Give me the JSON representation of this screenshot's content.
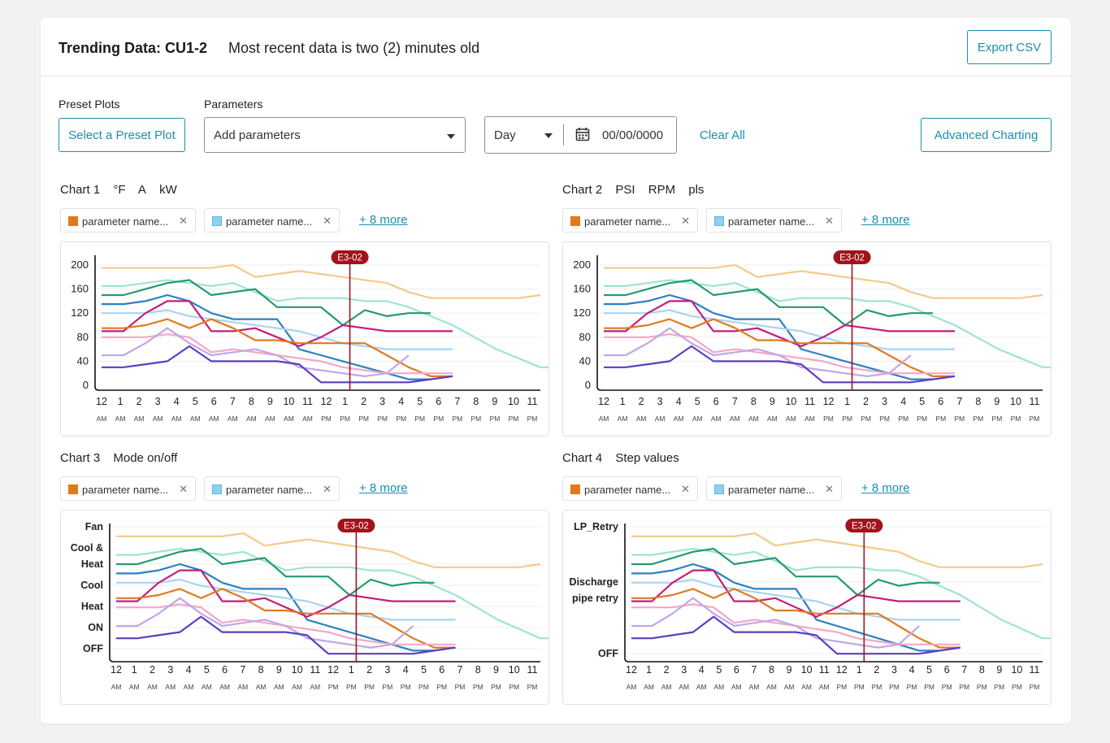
{
  "header": {
    "title": "Trending Data: CU1-2",
    "status": "Most recent data is two (2) minutes old",
    "export_label": "Export CSV"
  },
  "controls": {
    "preset_label": "Preset Plots",
    "preset_button": "Select a Preset Plot",
    "parameters_label": "Parameters",
    "parameters_placeholder": "Add parameters",
    "period_value": "Day",
    "date_value": "00/00/0000",
    "clear_all": "Clear All",
    "advanced_charting": "Advanced Charting"
  },
  "colors": {
    "accent": "#1a8fb0",
    "event_marker": "#a3121b",
    "chip_orange": "#e07a1f",
    "chip_blue": "#8fd0ee"
  },
  "chip": {
    "label": "parameter name...",
    "remove_icon": "close-icon"
  },
  "charts": [
    {
      "name": "Chart 1",
      "units": [
        "°F",
        "A",
        "kW"
      ],
      "more": "+ 8 more",
      "event_label": "E3-02"
    },
    {
      "name": "Chart 2",
      "units": [
        "PSI",
        "RPM",
        "pls"
      ],
      "more": "+ 8 more",
      "event_label": "E3-02"
    },
    {
      "name": "Chart 3",
      "units": [
        "Mode on/off"
      ],
      "more": "+ 8 more",
      "event_label": "E3-02"
    },
    {
      "name": "Chart 4",
      "units": [
        "Step values"
      ],
      "more": "+ 8 more",
      "event_label": "E3-02"
    }
  ],
  "chart_data": [
    {
      "type": "line",
      "title": "Chart 1",
      "y_ticks": [
        "200",
        "160",
        "120",
        "80",
        "40",
        "0"
      ],
      "x": [
        "12",
        "1",
        "2",
        "3",
        "4",
        "5",
        "6",
        "7",
        "8",
        "9",
        "10",
        "11",
        "12",
        "1",
        "2",
        "3",
        "4",
        "5",
        "6",
        "7",
        "8",
        "9",
        "10",
        "11"
      ],
      "x_sub": [
        "AM",
        "AM",
        "AM",
        "AM",
        "AM",
        "AM",
        "AM",
        "AM",
        "AM",
        "AM",
        "AM",
        "AM",
        "PM",
        "PM",
        "PM",
        "PM",
        "PM",
        "PM",
        "PM",
        "PM",
        "PM",
        "PM",
        "PM",
        "PM"
      ],
      "ylim": [
        0,
        200
      ],
      "event": {
        "label": "E3-02",
        "x_index": 13
      }
    },
    {
      "type": "line",
      "title": "Chart 2",
      "y_ticks": [
        "200",
        "160",
        "120",
        "80",
        "40",
        "0"
      ],
      "x": [
        "12",
        "1",
        "2",
        "3",
        "4",
        "5",
        "6",
        "7",
        "8",
        "9",
        "10",
        "11",
        "12",
        "1",
        "2",
        "3",
        "4",
        "5",
        "6",
        "7",
        "8",
        "9",
        "10",
        "11"
      ],
      "x_sub": [
        "AM",
        "AM",
        "AM",
        "AM",
        "AM",
        "AM",
        "AM",
        "AM",
        "AM",
        "AM",
        "AM",
        "AM",
        "PM",
        "PM",
        "PM",
        "PM",
        "PM",
        "PM",
        "PM",
        "PM",
        "PM",
        "PM",
        "PM",
        "PM"
      ],
      "ylim": [
        0,
        200
      ],
      "event": {
        "label": "E3-02",
        "x_index": 13
      }
    },
    {
      "type": "line",
      "title": "Chart 3",
      "y_ticks": [
        "Fan",
        "Cool &",
        "Heat",
        "Cool",
        "Heat",
        "ON",
        "OFF"
      ],
      "x": [
        "12",
        "1",
        "2",
        "3",
        "4",
        "5",
        "6",
        "7",
        "8",
        "9",
        "10",
        "11",
        "12",
        "1",
        "2",
        "3",
        "4",
        "5",
        "6",
        "7",
        "8",
        "9",
        "10",
        "11"
      ],
      "x_sub": [
        "AM",
        "AM",
        "AM",
        "AM",
        "AM",
        "AM",
        "AM",
        "AM",
        "AM",
        "AM",
        "AM",
        "AM",
        "PM",
        "PM",
        "PM",
        "PM",
        "PM",
        "PM",
        "PM",
        "PM",
        "PM",
        "PM",
        "PM",
        "PM"
      ],
      "event": {
        "label": "E3-02",
        "x_index": 13
      }
    },
    {
      "type": "line",
      "title": "Chart 4",
      "y_ticks": [
        "LP_Retry",
        "Discharge",
        "pipe retry",
        "OFF"
      ],
      "x": [
        "12",
        "1",
        "2",
        "3",
        "4",
        "5",
        "6",
        "7",
        "8",
        "9",
        "10",
        "11",
        "12",
        "1",
        "2",
        "3",
        "4",
        "5",
        "6",
        "7",
        "8",
        "9",
        "10",
        "11"
      ],
      "x_sub": [
        "AM",
        "AM",
        "AM",
        "AM",
        "AM",
        "AM",
        "AM",
        "AM",
        "AM",
        "AM",
        "AM",
        "AM",
        "PM",
        "PM",
        "PM",
        "PM",
        "PM",
        "PM",
        "PM",
        "PM",
        "PM",
        "PM",
        "PM",
        "PM"
      ],
      "event": {
        "label": "E3-02",
        "x_index": 13
      }
    }
  ],
  "series": [
    {
      "color": "#f6c98a",
      "values": [
        195,
        195,
        195,
        195,
        195,
        195,
        200,
        180,
        185,
        190,
        185,
        180,
        175,
        170,
        155,
        145,
        145,
        145,
        145,
        145,
        150
      ]
    },
    {
      "color": "#9fe3d3",
      "values": [
        165,
        165,
        170,
        175,
        170,
        165,
        170,
        155,
        140,
        145,
        145,
        145,
        140,
        140,
        130,
        115,
        100,
        80,
        60,
        45,
        30,
        30,
        30
      ]
    },
    {
      "color": "#239a6e",
      "values": [
        150,
        150,
        160,
        170,
        175,
        150,
        155,
        160,
        130,
        130,
        130,
        100,
        125,
        115,
        120,
        120
      ]
    },
    {
      "color": "#2d7fc1",
      "values": [
        135,
        135,
        140,
        150,
        140,
        120,
        110,
        110,
        110,
        60,
        50,
        40,
        30,
        20,
        10,
        10
      ]
    },
    {
      "color": "#a9d4ef",
      "values": [
        120,
        120,
        120,
        125,
        115,
        110,
        105,
        100,
        95,
        90,
        80,
        70,
        65,
        60,
        60,
        60,
        60
      ]
    },
    {
      "color": "#c21f7a",
      "values": [
        90,
        90,
        120,
        140,
        140,
        90,
        90,
        95,
        80,
        65,
        80,
        100,
        95,
        90,
        90,
        90,
        90
      ]
    },
    {
      "color": "#e07a1f",
      "values": [
        95,
        95,
        100,
        110,
        95,
        110,
        95,
        75,
        75,
        70,
        70,
        70,
        70,
        50,
        30,
        15,
        15
      ]
    },
    {
      "color": "#f3a8c8",
      "values": [
        80,
        80,
        80,
        85,
        80,
        55,
        60,
        55,
        50,
        45,
        40,
        30,
        25,
        20,
        20,
        20,
        20
      ]
    },
    {
      "color": "#c3a6e6",
      "values": [
        50,
        50,
        70,
        95,
        70,
        50,
        55,
        60,
        50,
        30,
        25,
        20,
        15,
        20,
        50
      ]
    },
    {
      "color": "#5a3fc0",
      "values": [
        30,
        30,
        35,
        40,
        65,
        40,
        40,
        40,
        40,
        35,
        5,
        5,
        5,
        5,
        5,
        10,
        15
      ]
    }
  ]
}
